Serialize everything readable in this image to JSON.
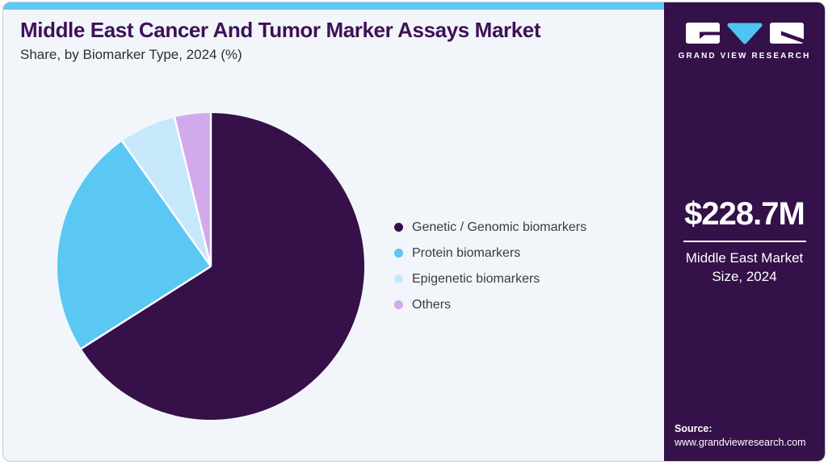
{
  "theme": {
    "top_bar": "#5FC9F2",
    "card_bg": "#F2F6FB",
    "card_border": "#C7CCD3",
    "sidebar_bg": "#341149",
    "title_color": "#3E1157",
    "subtitle_color": "#2D2D35",
    "legend_text": "#3A3A44"
  },
  "header": {
    "title": "Middle East Cancer And Tumor Marker Assays Market",
    "subtitle": "Share, by Biomarker Type, 2024 (%)"
  },
  "chart_data": {
    "type": "pie",
    "title": "Middle East Cancer And Tumor Marker Assays Market Share, by Biomarker Type, 2024 (%)",
    "categories": [
      "Genetic / Genomic biomarkers",
      "Protein biomarkers",
      "Epigenetic biomarkers",
      "Others"
    ],
    "values": [
      66.0,
      24.2,
      6.0,
      3.8
    ],
    "unit": "%",
    "colors": [
      "#351049",
      "#5BC7F3",
      "#C7E8FA",
      "#D2A9EC"
    ],
    "start_angle": "12 o'clock",
    "direction": "clockwise",
    "legend_position": "right",
    "separator_color": "#FFFFFF"
  },
  "sidebar": {
    "logo": {
      "brand": "GRAND VIEW RESEARCH",
      "icon_colors": {
        "boxes": "#FFFFFF",
        "triangle": "#4EC5F1"
      }
    },
    "market_size_value": "$228.7M",
    "market_size_label": "Middle East Market Size, 2024",
    "source_label": "Source:",
    "source_url": "www.grandviewresearch.com"
  }
}
